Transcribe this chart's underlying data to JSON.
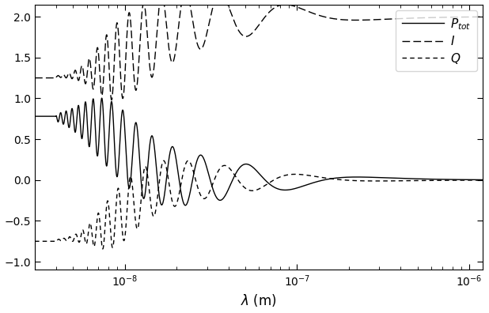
{
  "figsize": [
    6.18,
    3.96
  ],
  "dpi": 100,
  "xlabel": "$\\lambda$ (m)",
  "xlim": [
    3e-09,
    1.2e-06
  ],
  "ylim": [
    -1.1,
    2.15
  ],
  "yticks": [
    -1.0,
    -0.5,
    0.0,
    0.5,
    1.0,
    1.5,
    2.0
  ],
  "legend_labels": [
    "$P_{tot}$",
    "$I$",
    "$Q$"
  ],
  "lam_c": 1e-08,
  "lam_points": 8000
}
